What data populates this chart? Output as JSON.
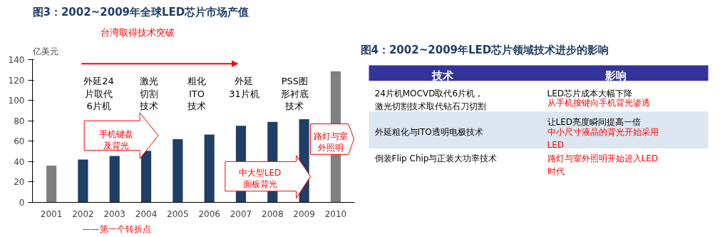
{
  "chart_data": [
    {
      "type": "bar",
      "title": "图3：2002~2009年全球LED芯片市场产值",
      "ylabel": "亿美元",
      "categories": [
        "2001",
        "2002",
        "2003",
        "2004",
        "2005",
        "2006",
        "2007",
        "2008",
        "2009",
        "2010"
      ],
      "values": [
        36,
        42,
        45.5,
        50.5,
        62,
        66.5,
        75,
        79,
        81.5,
        128.5
      ],
      "colors": [
        "#808080",
        "#1f3f66",
        "#1f3f66",
        "#1f3f66",
        "#1f3f66",
        "#1f3f66",
        "#1f3f66",
        "#1f3f66",
        "#1f3f66",
        "#808080"
      ],
      "ylim": [
        0,
        140
      ],
      "yticks": [
        0,
        20,
        40,
        60,
        80,
        100,
        120,
        140
      ],
      "grid": false,
      "annotations": [
        "台湾取得技术突破",
        "外延24片取代6片机",
        "激光切割技术",
        "粗化ITO技术",
        "外延31片机",
        "PSS图形衬底技术",
        "手机键盘及背光",
        "中大型LED面板背光",
        "路灯与室外照明",
        "——第一个转折点"
      ]
    },
    {
      "type": "other",
      "title": "图4：2002~2009年LED芯片领域技术进步的影响",
      "annotations": [
        "技术",
        "影响",
        "24片机MOCVD取代6片机，激光切割技术取代钻石刀切割",
        "LED芯片成本大幅下降",
        "从手机按键向手机背光渗透",
        "外延粗化与ITO透明电极技术",
        "让LED亮度瞬间提高一倍",
        "中小尺寸液晶的背光开始采用LED",
        "倒装Flip Chip与正装大功率技术",
        "路灯与室外照明开始进入LED时代"
      ]
    }
  ]
}
